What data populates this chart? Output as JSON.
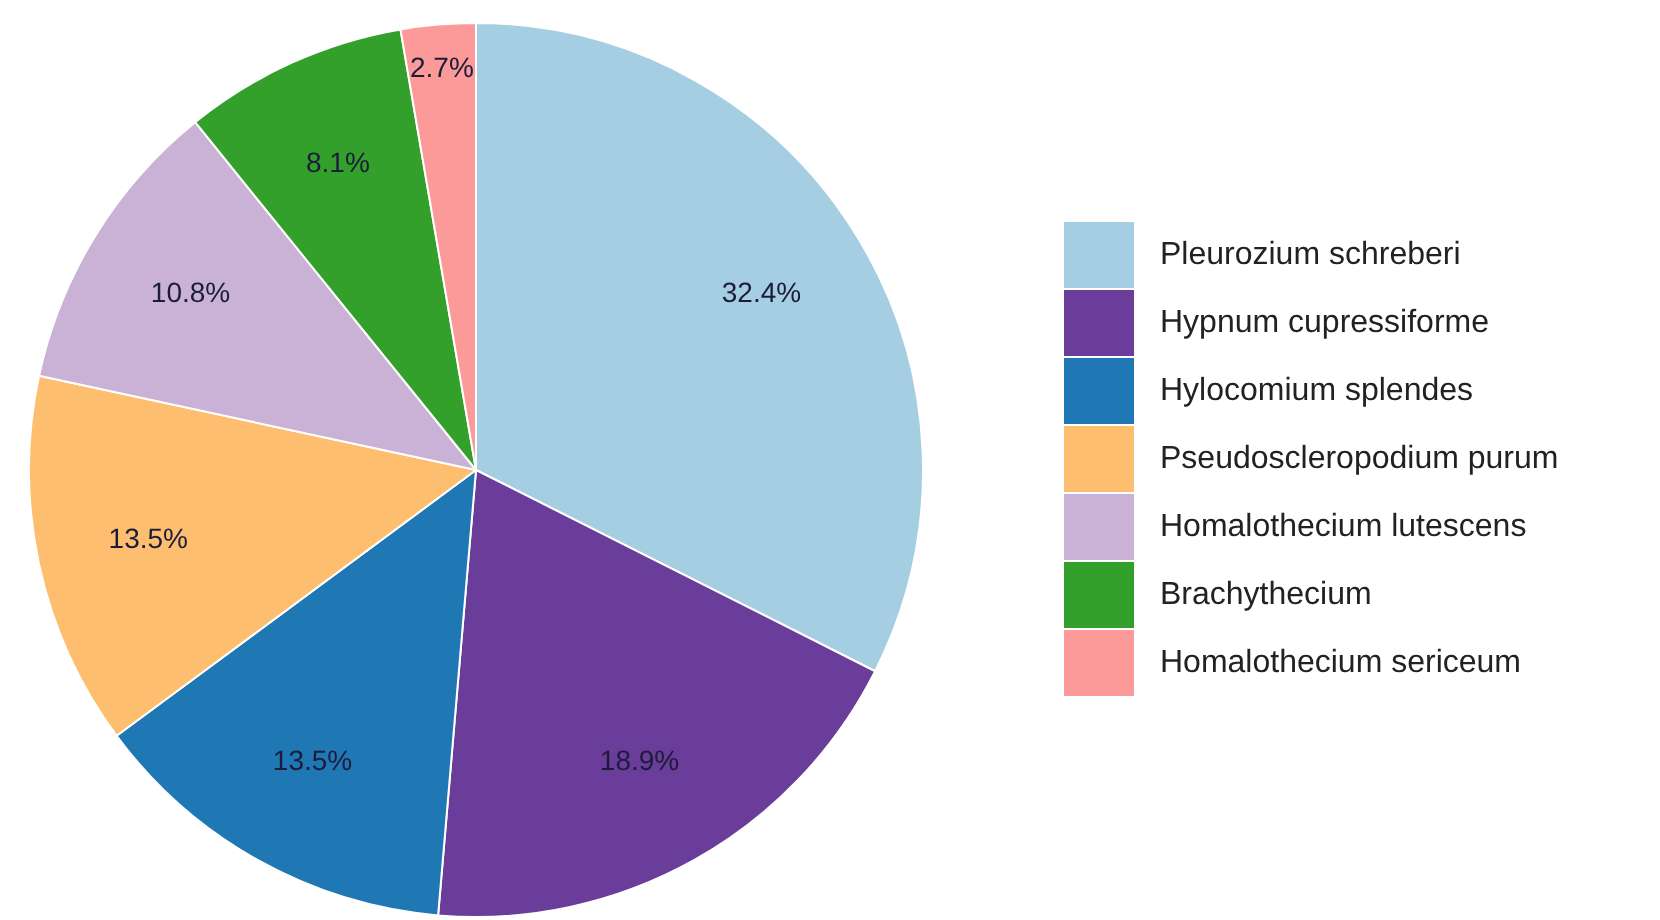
{
  "chart_data": {
    "type": "pie",
    "categories": [
      "Pleurozium schreberi",
      "Hypnum cupressiforme",
      "Hylocomium splendes",
      "Pseudoscleropodium purum",
      "Homalothecium lutescens",
      "Brachythecium",
      "Homalothecium sericeum"
    ],
    "values": [
      32.4,
      18.9,
      13.5,
      13.5,
      10.8,
      8.1,
      2.7
    ],
    "value_labels": [
      "32.4%",
      "18.9%",
      "13.5%",
      "13.5%",
      "10.8%",
      "8.1%",
      "2.7%"
    ],
    "colors": [
      "#a6cee3",
      "#6a3d9a",
      "#1f78b4",
      "#fdbf6f",
      "#cab2d6",
      "#33a02c",
      "#fb9a99"
    ],
    "legend": "right"
  }
}
